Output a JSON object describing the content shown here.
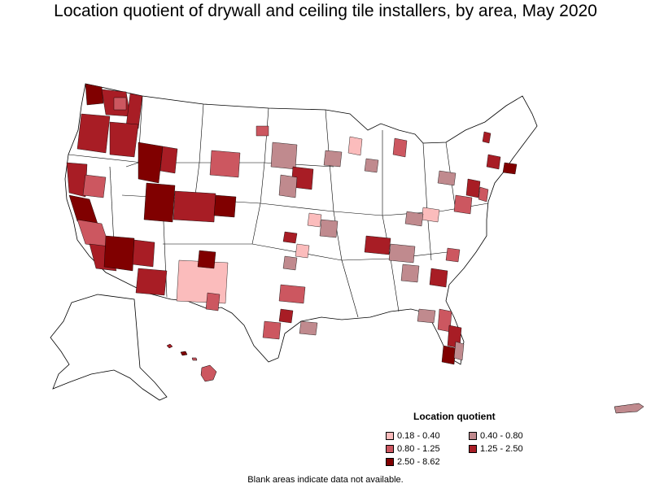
{
  "title": "Location quotient of drywall and ceiling tile installers, by area, May 2020",
  "legend": {
    "title": "Location quotient",
    "items": [
      {
        "label": "0.18 - 0.40",
        "color": "#fbbcbc"
      },
      {
        "label": "0.40 - 0.80",
        "color": "#c08a8e"
      },
      {
        "label": "0.80 - 1.25",
        "color": "#cc5760"
      },
      {
        "label": "1.25 - 2.50",
        "color": "#a81d25"
      },
      {
        "label": "2.50 - 8.62",
        "color": "#800000"
      }
    ]
  },
  "footnote": "Blank areas indicate data not available."
}
